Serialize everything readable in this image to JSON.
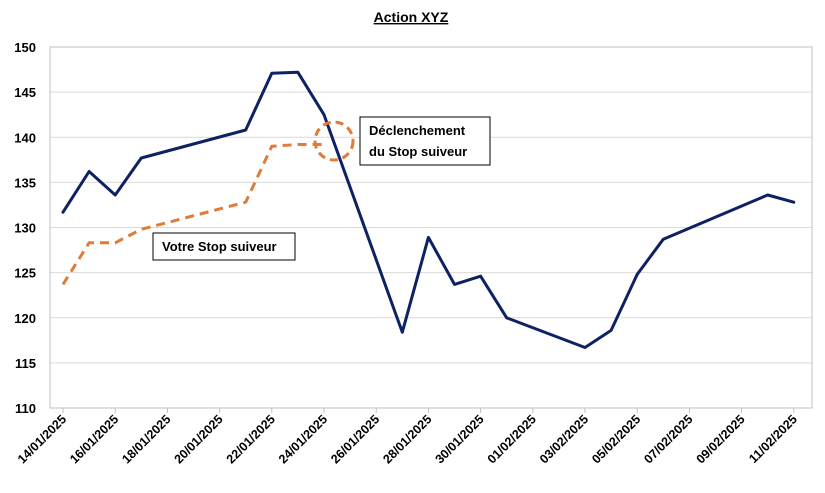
{
  "chart_data": {
    "type": "line",
    "title": "Action XYZ",
    "xlabel": "",
    "ylabel": "",
    "ylim": [
      110,
      150
    ],
    "yticks": [
      110,
      115,
      120,
      125,
      130,
      135,
      140,
      145,
      150
    ],
    "grid": true,
    "x_tick_labels": [
      "14/01/2025",
      "16/01/2025",
      "18/01/2025",
      "20/01/2025",
      "22/01/2025",
      "24/01/2025",
      "26/01/2025",
      "28/01/2025",
      "30/01/2025",
      "01/02/2025",
      "03/02/2025",
      "05/02/2025",
      "07/02/2025",
      "09/02/2025",
      "11/02/2025"
    ],
    "series": [
      {
        "name": "",
        "color": "#0d2163",
        "dash": false,
        "x": [
          "14/01/2025",
          "15/01/2025",
          "16/01/2025",
          "17/01/2025",
          "21/01/2025",
          "22/01/2025",
          "23/01/2025",
          "24/01/2025",
          "27/01/2025",
          "28/01/2025",
          "29/01/2025",
          "30/01/2025",
          "31/01/2025",
          "03/02/2025",
          "04/02/2025",
          "05/02/2025",
          "06/02/2025",
          "10/02/2025",
          "11/02/2025"
        ],
        "values": [
          131.7,
          136.2,
          133.6,
          137.7,
          140.8,
          147.1,
          147.2,
          142.5,
          118.4,
          128.9,
          123.7,
          124.6,
          120.0,
          116.7,
          118.6,
          124.8,
          128.7,
          133.6,
          132.8
        ]
      },
      {
        "name": "",
        "color": "#e07b39",
        "dash": true,
        "x": [
          "14/01/2025",
          "15/01/2025",
          "16/01/2025",
          "17/01/2025",
          "21/01/2025",
          "22/01/2025",
          "23/01/2025",
          "24/01/2025"
        ],
        "values": [
          123.7,
          128.3,
          128.3,
          129.8,
          132.8,
          139.0,
          139.2,
          139.2
        ]
      }
    ],
    "annotations": [
      {
        "label_line1": "Déclenchement",
        "label_line2": "du Stop suiveur"
      },
      {
        "label": "Votre Stop suiveur"
      }
    ]
  }
}
